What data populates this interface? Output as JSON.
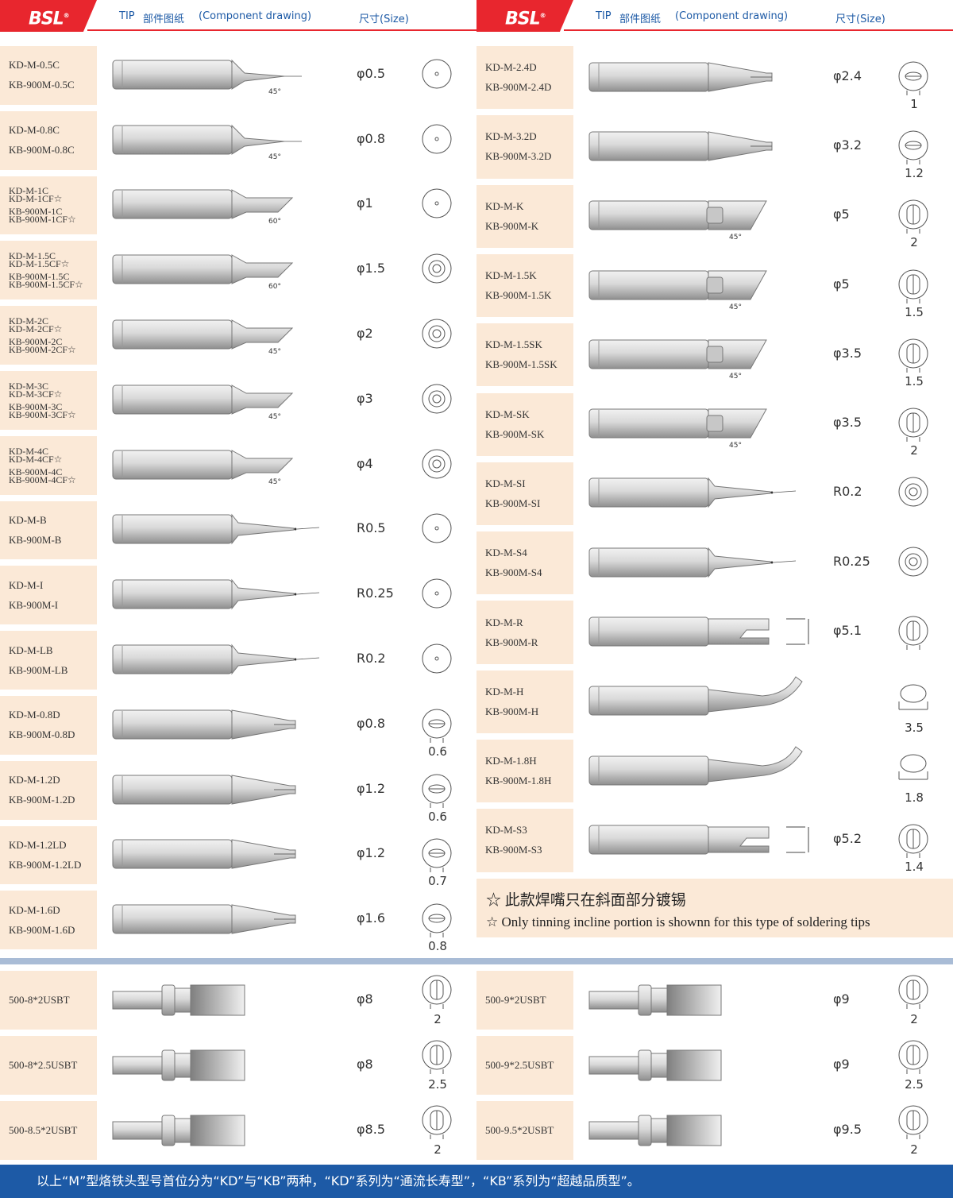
{
  "header": {
    "logo": "BSL",
    "tip": "TIP",
    "cn": "部件图纸",
    "en": "(Component drawing)",
    "size": "尺寸(Size)"
  },
  "left_rows": [
    {
      "lines": [
        "KD-M-0.5C",
        "KB-900M-0.5C"
      ],
      "size": "φ0.5",
      "angle": "45°",
      "shape": "conical",
      "end": "dot"
    },
    {
      "lines": [
        "KD-M-0.8C",
        "KB-900M-0.8C"
      ],
      "size": "φ0.8",
      "angle": "45°",
      "shape": "conical",
      "end": "dot"
    },
    {
      "lines": [
        "KD-M-1C",
        "KD-M-1CF☆",
        "KB-900M-1C",
        "KB-900M-1CF☆"
      ],
      "size": "φ1",
      "angle": "60°",
      "shape": "bevel",
      "end": "dot"
    },
    {
      "lines": [
        "KD-M-1.5C",
        "KD-M-1.5CF☆",
        "KB-900M-1.5C",
        "KB-900M-1.5CF☆"
      ],
      "size": "φ1.5",
      "angle": "60°",
      "shape": "bevel",
      "end": "ring"
    },
    {
      "lines": [
        "KD-M-2C",
        "KD-M-2CF☆",
        "KB-900M-2C",
        "KB-900M-2CF☆"
      ],
      "size": "φ2",
      "angle": "45°",
      "shape": "bevel",
      "end": "ring"
    },
    {
      "lines": [
        "KD-M-3C",
        "KD-M-3CF☆",
        "KB-900M-3C",
        "KB-900M-3CF☆"
      ],
      "size": "φ3",
      "angle": "45°",
      "shape": "bevel",
      "end": "ring"
    },
    {
      "lines": [
        "KD-M-4C",
        "KD-M-4CF☆",
        "KB-900M-4C",
        "KB-900M-4CF☆"
      ],
      "size": "φ4",
      "angle": "45°",
      "shape": "bevel",
      "end": "ring"
    },
    {
      "lines": [
        "KD-M-B",
        "KB-900M-B"
      ],
      "size": "R0.5",
      "angle": "",
      "shape": "needle",
      "end": "dot"
    },
    {
      "lines": [
        "KD-M-I",
        "KB-900M-I"
      ],
      "size": "R0.25",
      "angle": "",
      "shape": "needle",
      "end": "dot"
    },
    {
      "lines": [
        "KD-M-LB",
        "KB-900M-LB"
      ],
      "size": "R0.2",
      "angle": "",
      "shape": "needle",
      "end": "dot"
    },
    {
      "lines": [
        "KD-M-0.8D",
        "KB-900M-0.8D"
      ],
      "size": "φ0.8",
      "angle": "",
      "shape": "chisel",
      "end": "flat",
      "endnum": "0.6"
    },
    {
      "lines": [
        "KD-M-1.2D",
        "KB-900M-1.2D"
      ],
      "size": "φ1.2",
      "angle": "",
      "shape": "chisel",
      "end": "flat",
      "endnum": "0.6"
    },
    {
      "lines": [
        "KD-M-1.2LD",
        "KB-900M-1.2LD"
      ],
      "size": "φ1.2",
      "angle": "",
      "shape": "chisel",
      "end": "flat",
      "endnum": "0.7"
    },
    {
      "lines": [
        "KD-M-1.6D",
        "KB-900M-1.6D"
      ],
      "size": "φ1.6",
      "angle": "",
      "shape": "chisel",
      "end": "flat",
      "endnum": "0.8"
    }
  ],
  "right_rows": [
    {
      "lines": [
        "KD-M-2.4D",
        "KB-900M-2.4D"
      ],
      "size": "φ2.4",
      "angle": "",
      "shape": "chisel",
      "end": "flat",
      "endnum": "1"
    },
    {
      "lines": [
        "KD-M-3.2D",
        "KB-900M-3.2D"
      ],
      "size": "φ3.2",
      "angle": "",
      "shape": "chisel",
      "end": "flat",
      "endnum": "1.2"
    },
    {
      "lines": [
        "KD-M-K",
        "KB-900M-K"
      ],
      "size": "φ5",
      "angle": "45°",
      "shape": "knife",
      "end": "slot",
      "endnum": "2"
    },
    {
      "lines": [
        "KD-M-1.5K",
        "KB-900M-1.5K"
      ],
      "size": "φ5",
      "angle": "45°",
      "shape": "knife",
      "end": "slot",
      "endnum": "1.5"
    },
    {
      "lines": [
        "KD-M-1.5SK",
        "KB-900M-1.5SK"
      ],
      "size": "φ3.5",
      "angle": "45°",
      "shape": "knife",
      "end": "slot",
      "endnum": "1.5"
    },
    {
      "lines": [
        "KD-M-SK",
        "KB-900M-SK"
      ],
      "size": "φ3.5",
      "angle": "45°",
      "shape": "knife",
      "end": "slot",
      "endnum": "2"
    },
    {
      "lines": [
        "KD-M-SI",
        "KB-900M-SI"
      ],
      "size": "R0.2",
      "angle": "",
      "shape": "needle",
      "end": "ring"
    },
    {
      "lines": [
        "KD-M-S4",
        "KB-900M-S4"
      ],
      "size": "R0.25",
      "angle": "",
      "shape": "needle",
      "end": "ring"
    },
    {
      "lines": [
        "KD-M-R",
        "KB-900M-R"
      ],
      "size": "φ5.1",
      "angle": "",
      "shape": "cup",
      "end": "slot"
    },
    {
      "lines": [
        "KD-M-H",
        "KB-900M-H"
      ],
      "size": "",
      "angle": "",
      "shape": "bent",
      "end": "oval",
      "endnum": "3.5"
    },
    {
      "lines": [
        "KD-M-1.8H",
        "KB-900M-1.8H"
      ],
      "size": "",
      "angle": "",
      "shape": "bent",
      "end": "oval",
      "endnum": "1.8"
    },
    {
      "lines": [
        "KD-M-S3",
        "KB-900M-S3"
      ],
      "size": "φ5.2",
      "angle": "",
      "shape": "cup",
      "end": "slot",
      "endnum": "1.4"
    }
  ],
  "note": {
    "line1": "☆  此款焊嘴只在斜面部分镀锡",
    "line2": "☆  Only tinning incline portion is shownn for this type of soldering tips"
  },
  "bottom_left": [
    {
      "label": "500-8*2USBT",
      "size": "φ8",
      "endnum": "2"
    },
    {
      "label": "500-8*2.5USBT",
      "size": "φ8",
      "endnum": "2.5"
    },
    {
      "label": "500-8.5*2USBT",
      "size": "φ8.5",
      "endnum": "2"
    }
  ],
  "bottom_right": [
    {
      "label": "500-9*2USBT",
      "size": "φ9",
      "endnum": "2"
    },
    {
      "label": "500-9*2.5USBT",
      "size": "φ9",
      "endnum": "2.5"
    },
    {
      "label": "500-9.5*2USBT",
      "size": "φ9.5",
      "endnum": "2"
    }
  ],
  "footer": "以上“M”型烙铁头型号首位分为“KD”与“KB”两种，“KD”系列为“通流长寿型”，“KB”系列为“超越品质型”。",
  "colors": {
    "brand_red": "#e8262e",
    "brand_blue": "#1d5aa6",
    "label_bg": "#fbe9d7"
  }
}
